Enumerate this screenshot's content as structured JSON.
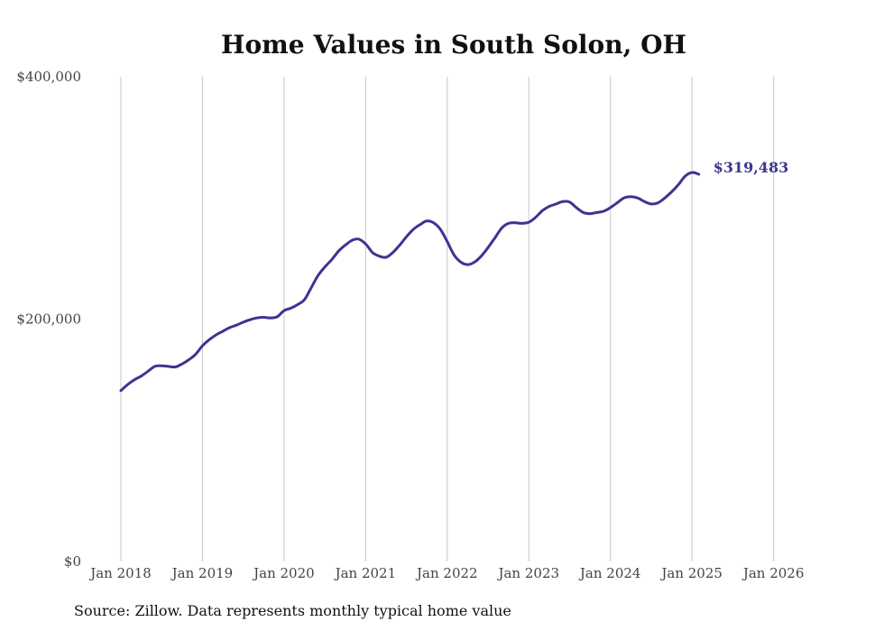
{
  "chart_data": {
    "type": "line",
    "title": "Home Values in South Solon, OH",
    "xlabel": "",
    "ylabel": "",
    "ylim": [
      0,
      400000
    ],
    "yticks": [
      {
        "value": 0,
        "label": "$0"
      },
      {
        "value": 200000,
        "label": "$200,000"
      },
      {
        "value": 400000,
        "label": "$400,000"
      }
    ],
    "xticks": [
      {
        "value": 2018.0,
        "label": "Jan 2018"
      },
      {
        "value": 2019.0,
        "label": "Jan 2019"
      },
      {
        "value": 2020.0,
        "label": "Jan 2020"
      },
      {
        "value": 2021.0,
        "label": "Jan 2021"
      },
      {
        "value": 2022.0,
        "label": "Jan 2022"
      },
      {
        "value": 2023.0,
        "label": "Jan 2023"
      },
      {
        "value": 2024.0,
        "label": "Jan 2024"
      },
      {
        "value": 2025.0,
        "label": "Jan 2025"
      },
      {
        "value": 2026.0,
        "label": "Jan 2026"
      }
    ],
    "xlim": [
      2018.0,
      2026.17
    ],
    "grid": "vertical",
    "series": [
      {
        "name": "Typical home value",
        "color": "#3b3591",
        "end_label": "$319,483",
        "x_start": 2018.0,
        "step": 0.0833333,
        "values": [
          141000,
          146000,
          150000,
          153000,
          157000,
          161000,
          161500,
          161000,
          160500,
          163000,
          166500,
          171000,
          178000,
          183000,
          187000,
          190000,
          193000,
          195000,
          197500,
          199500,
          201000,
          201500,
          201000,
          202000,
          207000,
          209000,
          212000,
          216000,
          226000,
          236000,
          243000,
          249000,
          256000,
          261000,
          265000,
          266000,
          262000,
          255000,
          252000,
          251000,
          255000,
          261000,
          268000,
          274000,
          278000,
          281000,
          279500,
          274000,
          264000,
          253000,
          247000,
          245000,
          247000,
          252000,
          259000,
          267000,
          275000,
          279000,
          279500,
          279000,
          280000,
          284000,
          289500,
          293000,
          295000,
          297000,
          296500,
          292000,
          288000,
          287000,
          288000,
          289000,
          292000,
          296000,
          300000,
          301000,
          300000,
          297000,
          295000,
          296000,
          300000,
          305000,
          311000,
          318000,
          321000,
          319483
        ]
      }
    ]
  },
  "source": "Source: Zillow. Data represents monthly typical home value"
}
